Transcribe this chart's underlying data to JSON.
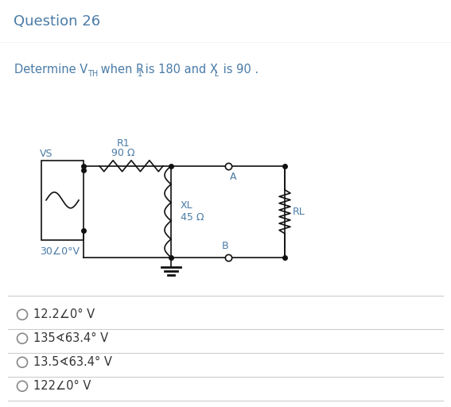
{
  "title": "Question 26",
  "title_color": "#4a7ba7",
  "header_bg": "#efefef",
  "content_bg": "#ffffff",
  "question_color": "#4a7ba7",
  "options_color": "#333333",
  "circuit_color": "#111111",
  "options": [
    "12.2∠0° V",
    "135∢63.4° V",
    "13.5∢63.4° V",
    "122∠0° V"
  ],
  "vs_label": "VS",
  "vs_voltage": "30∠0°V",
  "r1_label": "R1",
  "r1_value": "90 Ω",
  "xl_label": "XL",
  "xl_value": "45 Ω",
  "rl_label": "RL",
  "node_a": "A",
  "node_b": "B"
}
